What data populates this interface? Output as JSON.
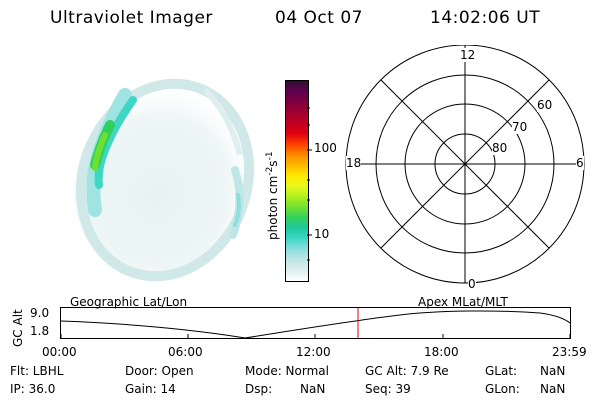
{
  "header": {
    "instrument": "Ultraviolet Imager",
    "date": "04 Oct 07",
    "time": "14:02:06 UT"
  },
  "colorbar": {
    "unit_label": "photon cm",
    "unit_exp1": "-2",
    "unit_mid": "s",
    "unit_exp2": "-1",
    "tick_labels": [
      "100",
      "10"
    ],
    "colors": [
      "#ffffff",
      "#dfeeee",
      "#bfe6e6",
      "#8fdede",
      "#3fd6c6",
      "#20c8a0",
      "#30d060",
      "#70e030",
      "#b0f020",
      "#e8f820",
      "#ffe800",
      "#ffb800",
      "#ff8800",
      "#ff4000",
      "#e00010",
      "#c00020",
      "#a00030",
      "#800040",
      "#600050",
      "#301030"
    ]
  },
  "polar": {
    "mlt_labels": {
      "top": "12",
      "bottom": "0",
      "left": "18",
      "right": "6"
    },
    "lat_labels": [
      "60",
      "70",
      "80"
    ]
  },
  "timeline": {
    "y_axis_label": "GC Alt",
    "y_ticks": [
      "9.0",
      "1.8"
    ],
    "left_title": "Geographic Lat/Lon",
    "right_title": "Apex  MLat/MLT",
    "x_ticks": [
      "00:00",
      "06:00",
      "12:00",
      "18:00",
      "23:59"
    ],
    "marker_color": "#dd0000"
  },
  "status": {
    "flt": "Flt: LBHL",
    "ip": "IP: 36.0",
    "door": "Door: Open",
    "gain": "Gain: 14",
    "mode": "Mode: Normal",
    "dsp_label": "Dsp:",
    "dsp_value": "NaN",
    "gc_alt": "GC Alt: 7.9 Re",
    "seq": "Seq: 39",
    "glat_label": "GLat:",
    "glat_value": "NaN",
    "glon_label": "GLon:",
    "glon_value": "NaN"
  }
}
